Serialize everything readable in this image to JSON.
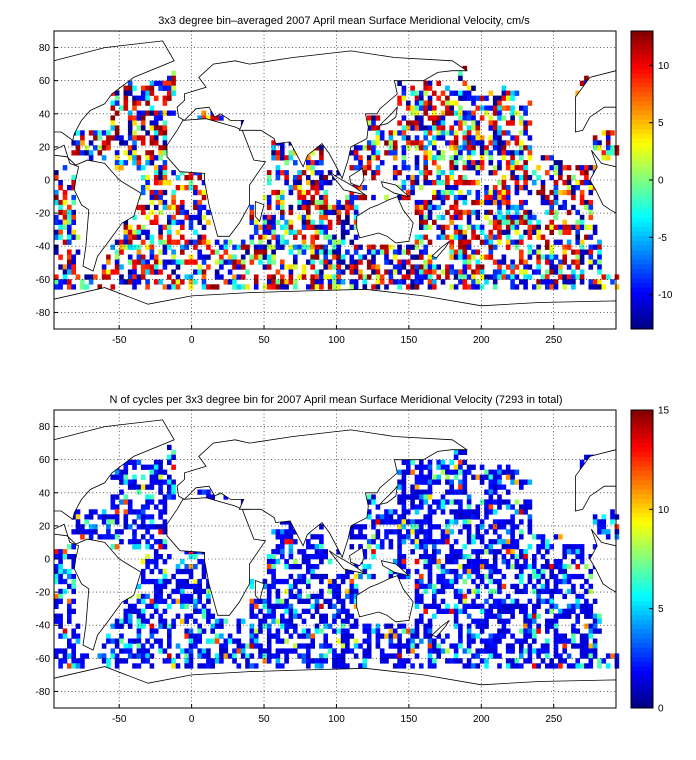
{
  "chart_data": [
    {
      "type": "heatmap",
      "title": "3x3 degree bin–averaged 2007 April mean Surface Meridional Velocity, cm/s",
      "xlabel": "",
      "ylabel": "",
      "xlim": [
        -95,
        293
      ],
      "ylim": [
        -90,
        90
      ],
      "x_ticks": [
        -50,
        0,
        50,
        100,
        150,
        200,
        250
      ],
      "x_tick_labels": [
        "-50",
        "0",
        "50",
        "100",
        "150",
        "200",
        "250"
      ],
      "y_ticks": [
        80,
        60,
        40,
        20,
        0,
        -20,
        -40,
        -60,
        -80
      ],
      "y_tick_labels": [
        "80",
        "60",
        "40",
        "20",
        "0",
        "-20",
        "-40",
        "-60",
        "-80"
      ],
      "grid": true,
      "bin_size_deg": 3,
      "colorbar": {
        "colormap": "jet",
        "clim": [
          -13,
          13
        ],
        "ticks": [
          10,
          5,
          0,
          -5,
          -10
        ],
        "tick_labels": [
          "10",
          "5",
          "0",
          "-5",
          "-10"
        ],
        "placement": "right"
      },
      "coverage": "sparse 3x3 degree bins across world oceans between about 70N and 70S",
      "mean_value_approx": 0
    },
    {
      "type": "heatmap",
      "title": "N of cycles per 3x3 degree bin for 2007 April mean Surface Meridional Velocity (7293 in total)",
      "xlabel": "",
      "ylabel": "",
      "xlim": [
        -95,
        293
      ],
      "ylim": [
        -90,
        90
      ],
      "x_ticks": [
        -50,
        0,
        50,
        100,
        150,
        200,
        250
      ],
      "x_tick_labels": [
        "-50",
        "0",
        "50",
        "100",
        "150",
        "200",
        "250"
      ],
      "y_ticks": [
        80,
        60,
        40,
        20,
        0,
        -20,
        -40,
        -60,
        -80
      ],
      "y_tick_labels": [
        "80",
        "60",
        "40",
        "20",
        "0",
        "-20",
        "-40",
        "-60",
        "-80"
      ],
      "grid": true,
      "bin_size_deg": 3,
      "colorbar": {
        "colormap": "jet",
        "clim": [
          0,
          15
        ],
        "ticks": [
          15,
          10,
          5,
          0
        ],
        "tick_labels": [
          "15",
          "10",
          "5",
          "0"
        ],
        "placement": "right"
      },
      "total_cycles": 7293,
      "typical_value_approx": 1
    }
  ]
}
